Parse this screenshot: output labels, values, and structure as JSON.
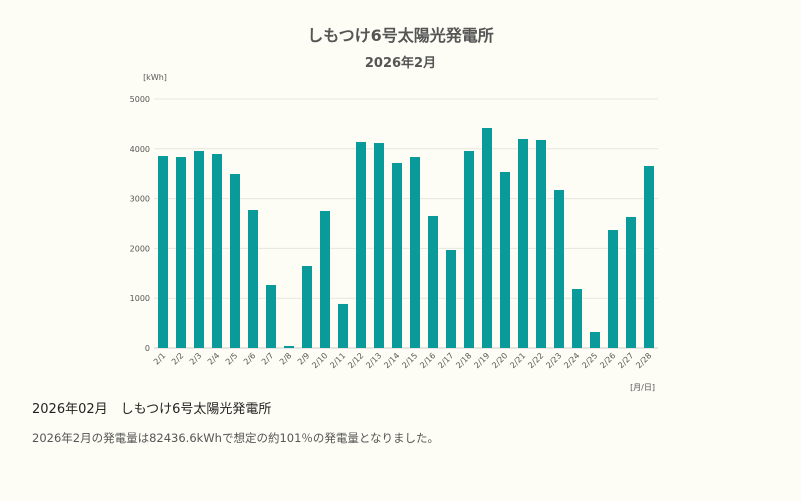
{
  "chart_data": {
    "type": "bar",
    "title": "しもつけ6号太陽光発電所",
    "subtitle": "2026年2月",
    "ylabel": "[kWh]",
    "xlabel": "[月/日]",
    "ylim": [
      0,
      5000
    ],
    "yticks": [
      0,
      1000,
      2000,
      3000,
      4000,
      5000
    ],
    "grid": true,
    "color": "#0a9a9a",
    "categories": [
      "2/1",
      "2/2",
      "2/3",
      "2/4",
      "2/5",
      "2/6",
      "2/7",
      "2/8",
      "2/9",
      "2/10",
      "2/11",
      "2/12",
      "2/13",
      "2/14",
      "2/15",
      "2/16",
      "2/17",
      "2/18",
      "2/19",
      "2/20",
      "2/21",
      "2/22",
      "2/23",
      "2/24",
      "2/25",
      "2/26",
      "2/27",
      "2/28"
    ],
    "values": [
      3855,
      3835,
      3956,
      3896,
      3494,
      2771,
      1265,
      40,
      1647,
      2751,
      884,
      4137,
      4116,
      3715,
      3835,
      2651,
      1968,
      3956,
      4418,
      3534,
      4197,
      4177,
      3173,
      1185,
      321,
      2369,
      2631,
      3655
    ]
  },
  "summary": {
    "title": "2026年02月　しもつけ6号太陽光発電所",
    "text": "2026年2月の発電量は82436.6kWhで想定の約101％の発電量となりました。"
  }
}
